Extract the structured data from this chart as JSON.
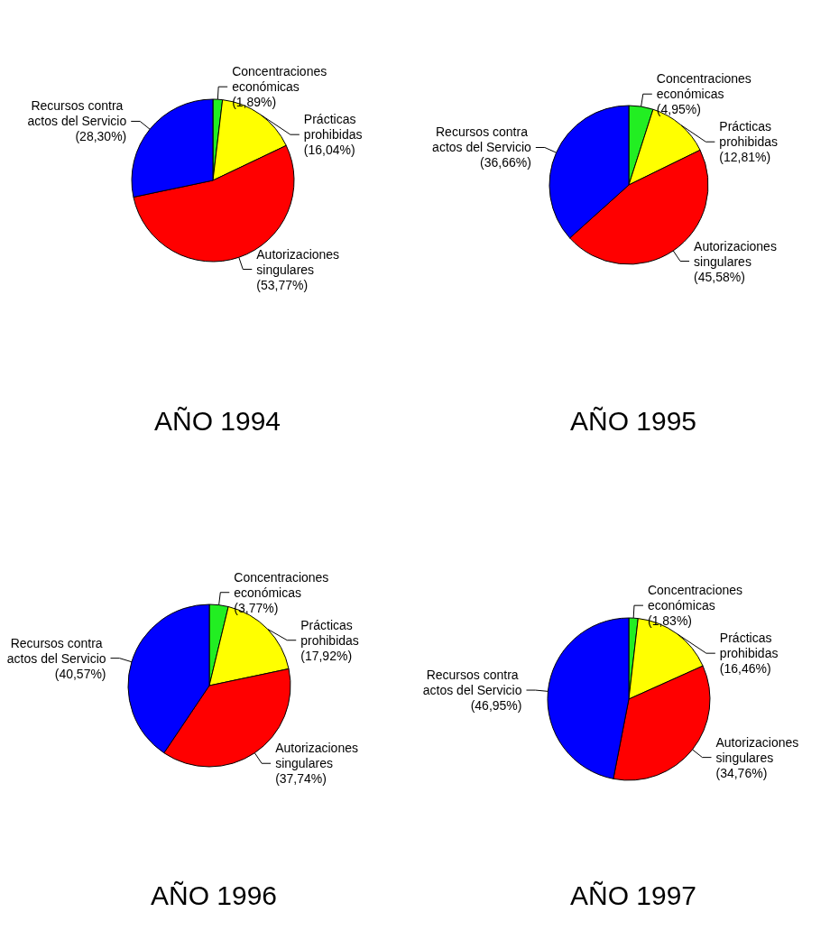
{
  "chart_data": [
    {
      "type": "pie",
      "title": "AÑO 1994",
      "categories": [
        "Concentraciones económicas",
        "Prácticas prohibidas",
        "Autorizaciones singulares",
        "Recursos contra actos del Servicio"
      ],
      "values": [
        1.89,
        16.04,
        53.77,
        28.3
      ],
      "value_labels": [
        "(1,89%)",
        "(16,04%)",
        "(53,77%)",
        "(28,30%)"
      ],
      "colors": [
        "#22ee22",
        "#ffff00",
        "#ff0000",
        "#0000ff"
      ],
      "legend": false
    },
    {
      "type": "pie",
      "title": "AÑO 1995",
      "categories": [
        "Concentraciones económicas",
        "Prácticas prohibidas",
        "Autorizaciones singulares",
        "Recursos contra actos del Servicio"
      ],
      "values": [
        4.95,
        12.81,
        45.58,
        36.66
      ],
      "value_labels": [
        "(4,95%)",
        "(12,81%)",
        "(45,58%)",
        "(36,66%)"
      ],
      "colors": [
        "#22ee22",
        "#ffff00",
        "#ff0000",
        "#0000ff"
      ],
      "legend": false
    },
    {
      "type": "pie",
      "title": "AÑO 1996",
      "categories": [
        "Concentraciones económicas",
        "Prácticas prohibidas",
        "Autorizaciones singulares",
        "Recursos contra actos del Servicio"
      ],
      "values": [
        3.77,
        17.92,
        37.74,
        40.57
      ],
      "value_labels": [
        "(3,77%)",
        "(17,92%)",
        "(37,74%)",
        "(40,57%)"
      ],
      "colors": [
        "#22ee22",
        "#ffff00",
        "#ff0000",
        "#0000ff"
      ],
      "legend": false
    },
    {
      "type": "pie",
      "title": "AÑO 1997",
      "categories": [
        "Concentraciones económicas",
        "Prácticas prohibidas",
        "Autorizaciones singulares",
        "Recursos contra actos del Servicio"
      ],
      "values": [
        1.83,
        16.46,
        34.76,
        46.95
      ],
      "value_labels": [
        "(1,83%)",
        "(16,46%)",
        "(34,76%)",
        "(46,95%)"
      ],
      "colors": [
        "#22ee22",
        "#ffff00",
        "#ff0000",
        "#0000ff"
      ],
      "legend": false
    }
  ]
}
